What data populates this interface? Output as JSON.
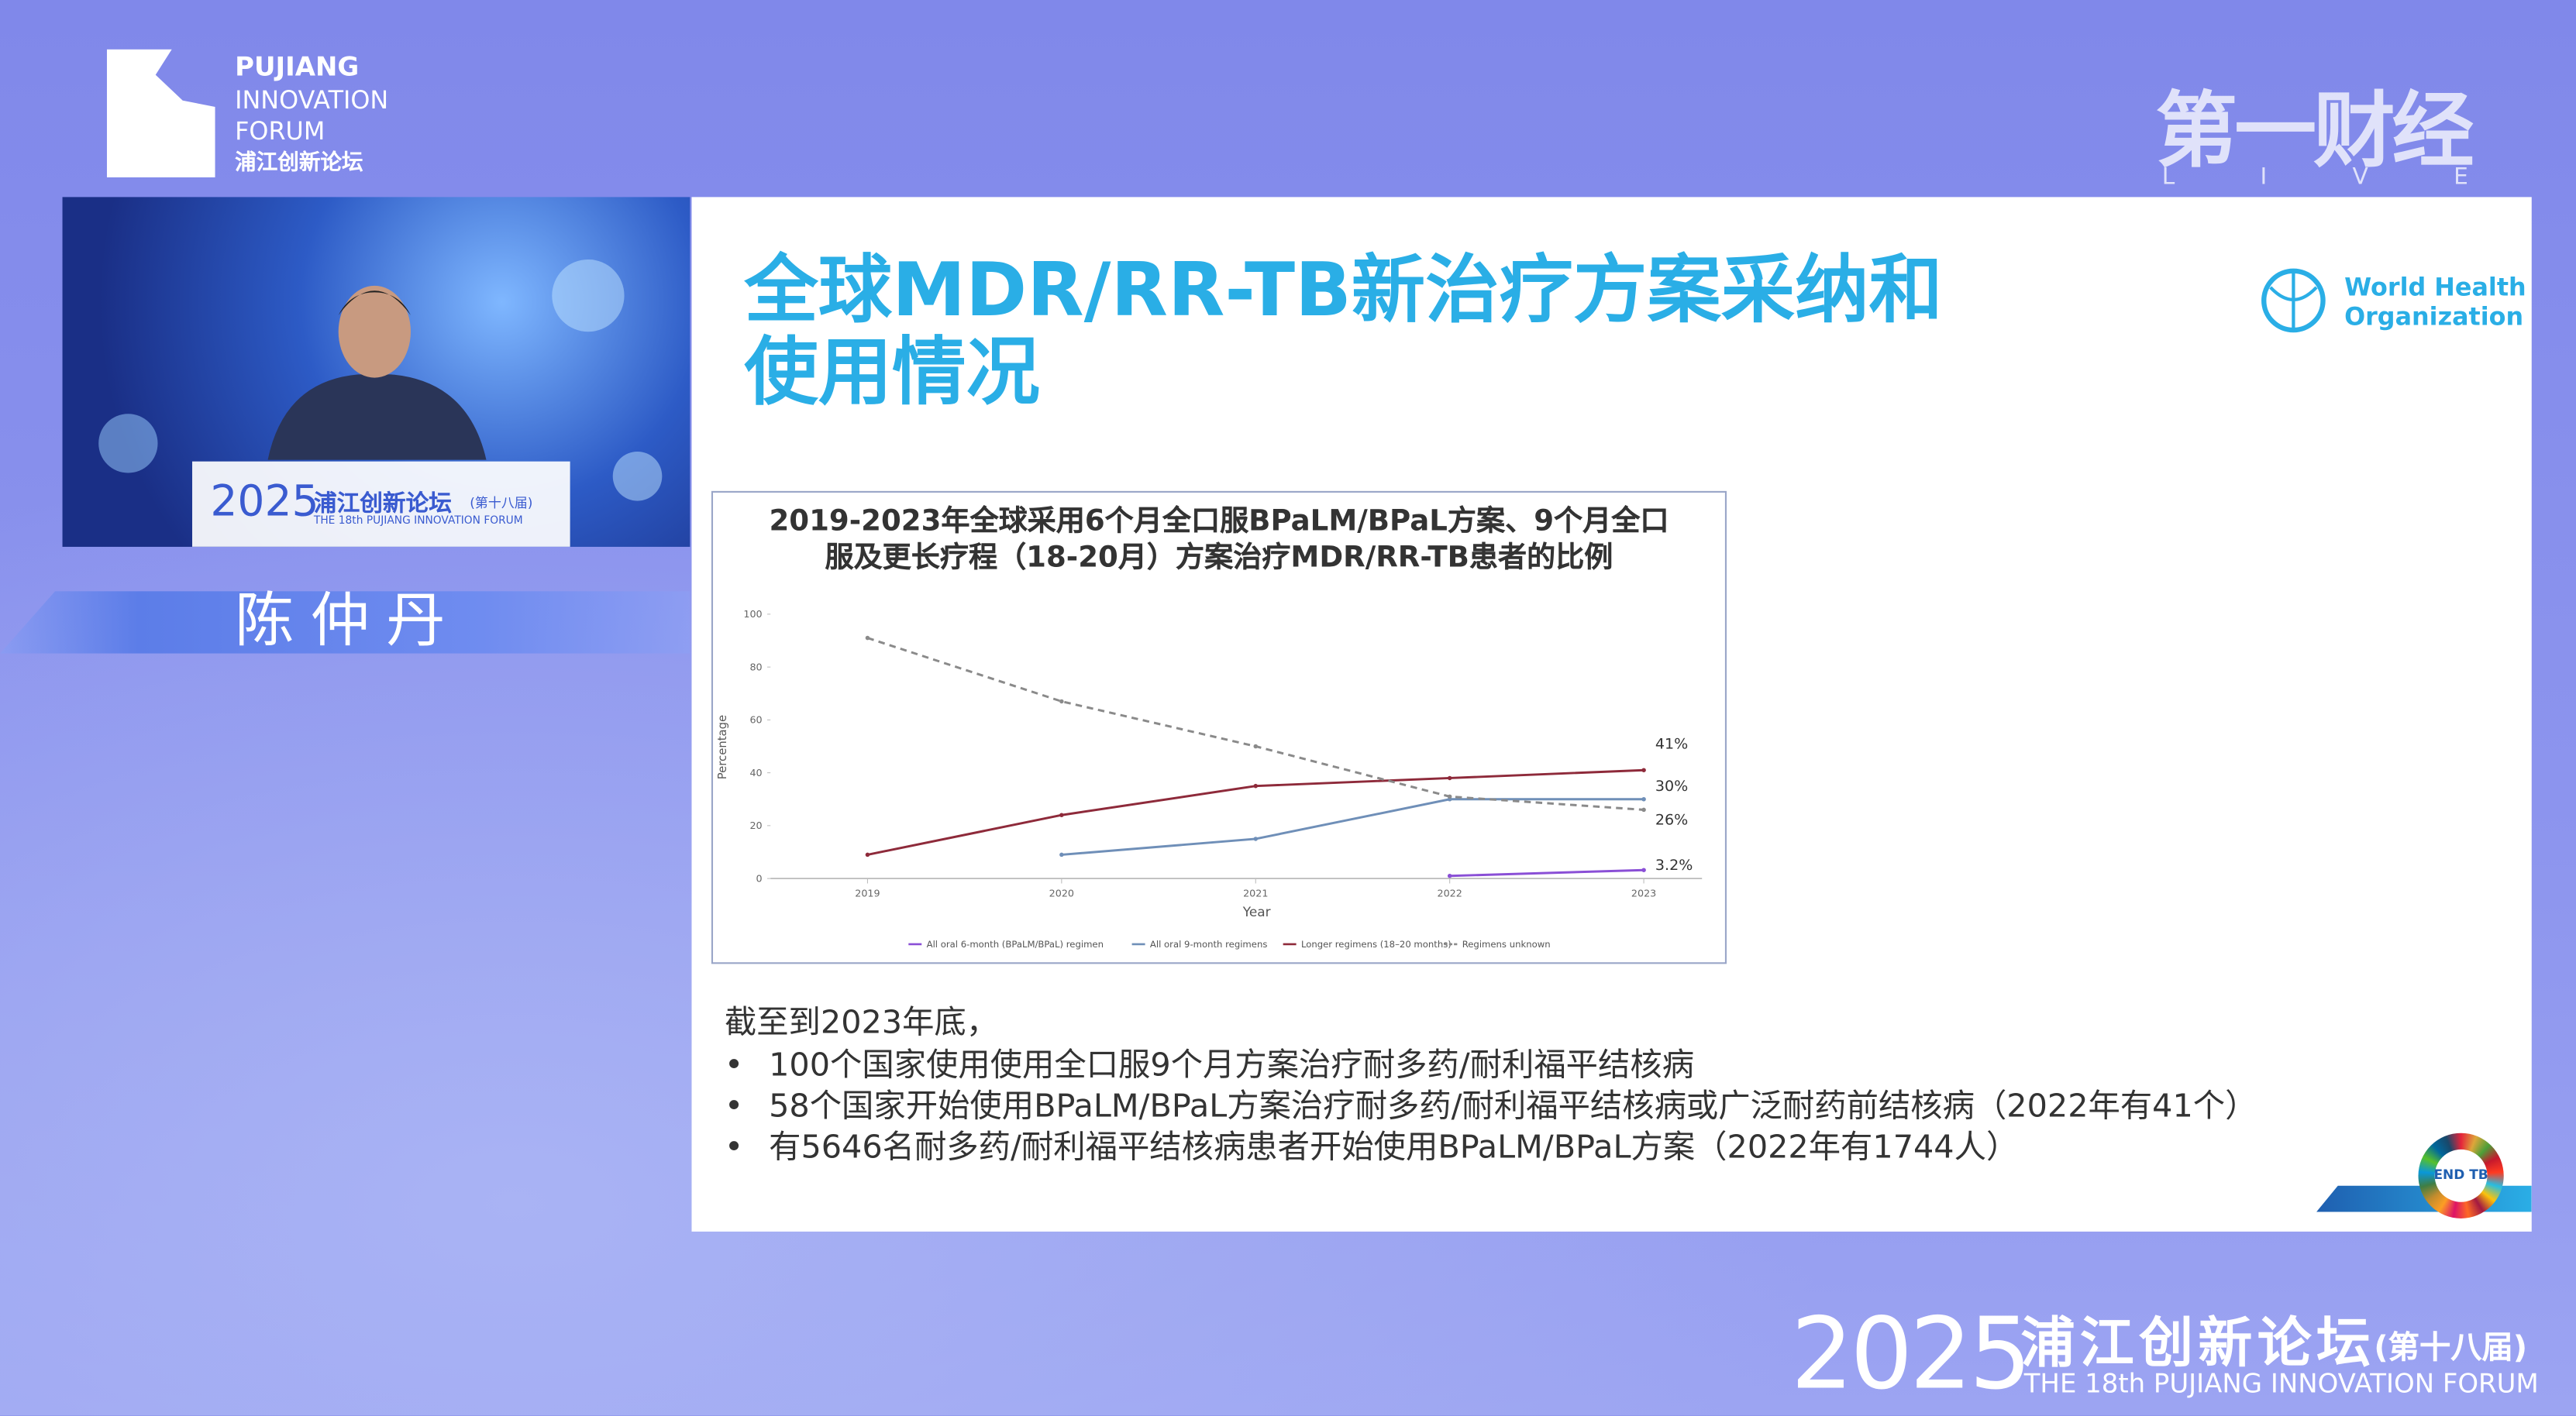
{
  "header": {
    "logo_lines": [
      "PUJIANG",
      "INNOVATION",
      "FORUM",
      "浦江创新论坛"
    ],
    "broadcaster": "第一财经",
    "broadcaster_sub": "LIVE"
  },
  "video": {
    "podium_year": "2025",
    "podium_title": "浦江创新论坛",
    "podium_edition": "(第十八届)",
    "podium_sub": "THE 18th PUJIANG INNOVATION FORUM"
  },
  "speaker": "陈仲丹",
  "slide": {
    "title": [
      "全球MDR/RR-TB新治疗方案采纳和",
      "使用情况"
    ],
    "who": [
      "World Health",
      "Organization"
    ],
    "end_tb": "END TB",
    "intro": "截至到2023年底，",
    "bullets": [
      "100个国家使用使用全口服9个月方案治疗耐多药/耐利福平结核病",
      "58个国家开始使用BPaLM/BPaL方案治疗耐多药/耐利福平结核病或广泛耐药前结核病（2022年有41个）",
      "有5646名耐多药/耐利福平结核病患者开始使用BPaLM/BPaL方案（2022年有1744人）"
    ]
  },
  "chart_data": {
    "type": "line",
    "title": [
      "2019-2023年全球采用6个月全口服BPaLM/BPaL方案、9个月全口",
      "服及更长疗程（18-20月）方案治疗MDR/RR-TB患者的比例"
    ],
    "xlabel": "Year",
    "ylabel": "Percentage",
    "x": [
      2019,
      2020,
      2021,
      2022,
      2023
    ],
    "xlim": [
      2018.5,
      2023.3
    ],
    "xticks": [
      2019,
      2020,
      2021,
      2022,
      2023
    ],
    "ylim": [
      0,
      100
    ],
    "yticks": [
      0,
      20,
      40,
      60,
      80,
      100
    ],
    "series": [
      {
        "name": "All oral 6-month (BPaLM/BPaL) regimen",
        "color": "#8a4fd6",
        "values": [
          null,
          null,
          null,
          1,
          3.2
        ],
        "value_labels": [
          null,
          null,
          null,
          null,
          "3.2%"
        ]
      },
      {
        "name": "All oral 9-month regimens",
        "color": "#6f8fb8",
        "values": [
          null,
          9,
          15,
          30,
          30
        ],
        "value_labels": [
          null,
          null,
          null,
          null,
          "30%"
        ]
      },
      {
        "name": "Longer regimens (18–20 months)",
        "color": "#8e2a3a",
        "values": [
          9,
          24,
          35,
          38,
          41
        ],
        "value_labels": [
          null,
          null,
          null,
          null,
          "41%"
        ]
      },
      {
        "name": "Regimens unknown",
        "color": "#8a8a8a",
        "dashed": true,
        "values": [
          91,
          67,
          50,
          31,
          26
        ],
        "value_labels": [
          null,
          null,
          null,
          null,
          "26%"
        ]
      }
    ]
  }
}
